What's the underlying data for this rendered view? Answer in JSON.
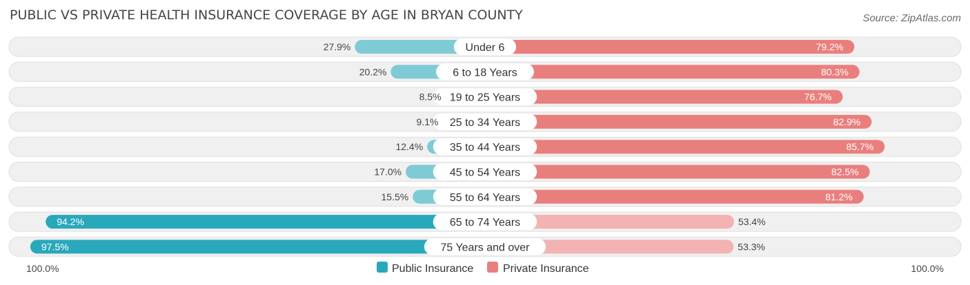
{
  "colors": {
    "public_strong": "#2aa8bb",
    "public_light": "#7ecad5",
    "private_strong": "#e97f7d",
    "private_light": "#f2b3b2",
    "track_bg": "#f0f0f0",
    "track_border": "#dedede",
    "title": "#454545",
    "source": "#6b6b6b"
  },
  "chart_data": {
    "type": "bar",
    "orientation": "horizontal-diverging",
    "title": "PUBLIC VS PRIVATE HEALTH INSURANCE COVERAGE BY AGE IN BRYAN COUNTY",
    "source": "Source: ZipAtlas.com",
    "categories": [
      "Under 6",
      "6 to 18 Years",
      "19 to 25 Years",
      "25 to 34 Years",
      "35 to 44 Years",
      "45 to 54 Years",
      "55 to 64 Years",
      "65 to 74 Years",
      "75 Years and over"
    ],
    "series": [
      {
        "name": "Public Insurance",
        "side": "left",
        "values": [
          27.9,
          20.2,
          8.5,
          9.1,
          12.4,
          17.0,
          15.5,
          94.2,
          97.5
        ],
        "labels": [
          "27.9%",
          "20.2%",
          "8.5%",
          "9.1%",
          "12.4%",
          "17.0%",
          "15.5%",
          "94.2%",
          "97.5%"
        ]
      },
      {
        "name": "Private Insurance",
        "side": "right",
        "values": [
          79.2,
          80.3,
          76.7,
          82.9,
          85.7,
          82.5,
          81.2,
          53.4,
          53.3
        ],
        "labels": [
          "79.2%",
          "80.3%",
          "76.7%",
          "82.9%",
          "85.7%",
          "82.5%",
          "81.2%",
          "53.4%",
          "53.3%"
        ]
      }
    ],
    "xlim": [
      0,
      100
    ],
    "axis_left_label": "100.0%",
    "axis_right_label": "100.0%",
    "legend": [
      "Public Insurance",
      "Private Insurance"
    ],
    "legend_position": "bottom-center"
  }
}
